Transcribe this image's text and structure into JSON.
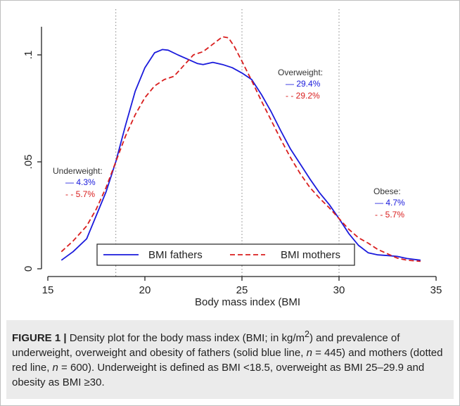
{
  "chart_data": {
    "type": "line",
    "title": "",
    "xlabel": "Body mass index (BMI",
    "ylabel": "",
    "xlim": [
      15,
      35
    ],
    "ylim": [
      0,
      0.1
    ],
    "x_ticks": [
      15,
      20,
      25,
      30,
      35
    ],
    "x_tick_labels": [
      "15",
      "20",
      "25",
      "30",
      "35"
    ],
    "y_ticks": [
      0,
      0.05,
      0.1
    ],
    "y_tick_labels": [
      "0",
      ".05",
      ".1"
    ],
    "reference_lines_x": [
      18.5,
      25,
      30
    ],
    "legend_position": "bottom-inside",
    "series": [
      {
        "name": "BMI fathers",
        "color": "#1a1adc",
        "style": "solid",
        "x": [
          15.7,
          16.3,
          17.0,
          17.5,
          18.0,
          18.5,
          19.0,
          19.5,
          20.0,
          20.5,
          20.9,
          21.2,
          21.7,
          22.2,
          22.7,
          23.0,
          23.5,
          24.0,
          24.5,
          25.0,
          25.5,
          26.0,
          26.5,
          27.0,
          27.5,
          28.0,
          28.5,
          29.0,
          29.5,
          30.0,
          30.5,
          31.0,
          31.5,
          32.0,
          32.5,
          33.0,
          33.5,
          34.2
        ],
        "y": [
          0.004,
          0.008,
          0.014,
          0.025,
          0.036,
          0.05,
          0.067,
          0.083,
          0.094,
          0.101,
          0.1025,
          0.1022,
          0.1,
          0.098,
          0.096,
          0.0955,
          0.0965,
          0.0955,
          0.094,
          0.0915,
          0.0885,
          0.0815,
          0.0735,
          0.0645,
          0.056,
          0.049,
          0.042,
          0.0355,
          0.03,
          0.0235,
          0.0165,
          0.011,
          0.0075,
          0.0065,
          0.0062,
          0.0058,
          0.0048,
          0.004
        ]
      },
      {
        "name": "BMI mothers",
        "color": "#d91e1e",
        "style": "dashed",
        "x": [
          15.7,
          16.3,
          17.0,
          17.5,
          18.0,
          18.5,
          19.0,
          19.5,
          20.0,
          20.5,
          21.0,
          21.5,
          22.0,
          22.5,
          23.0,
          23.5,
          24.0,
          24.3,
          24.6,
          25.0,
          25.5,
          26.0,
          26.5,
          27.0,
          27.5,
          28.0,
          28.5,
          29.0,
          29.5,
          30.0,
          30.5,
          31.0,
          31.5,
          32.0,
          32.5,
          33.0,
          33.5,
          34.2
        ],
        "y": [
          0.008,
          0.013,
          0.02,
          0.028,
          0.038,
          0.05,
          0.062,
          0.072,
          0.08,
          0.0855,
          0.0885,
          0.09,
          0.095,
          0.1,
          0.1015,
          0.105,
          0.1085,
          0.108,
          0.104,
          0.097,
          0.088,
          0.0785,
          0.0695,
          0.0605,
          0.052,
          0.0445,
          0.038,
          0.033,
          0.0285,
          0.0235,
          0.0185,
          0.0145,
          0.012,
          0.009,
          0.007,
          0.005,
          0.004,
          0.0035
        ]
      }
    ],
    "annotations": [
      {
        "heading": "Underweight:",
        "fathers": "— 4.3%",
        "mothers": "- - 5.7%"
      },
      {
        "heading": "Overweight:",
        "fathers": "— 29.4%",
        "mothers": "- - 29.2%"
      },
      {
        "heading": "Obese:",
        "fathers": "— 4.7%",
        "mothers": "- - 5.7%"
      }
    ]
  },
  "caption": {
    "label": "FIGURE 1 |",
    "part1": "Density plot for the body mass index (BMI; in kg/m",
    "sup": "2",
    "part2": ") and prevalence of underweight, overweight and obesity of fathers (solid blue line, ",
    "n_symbol": "n",
    "n_fathers": " = 445) and mothers (dotted red line, ",
    "n_symbol_2": "n",
    "n_mothers": " = 600). Underweight is defined as BMI <18.5, overweight as BMI 25–29.9 and obesity as BMI ≥30."
  }
}
